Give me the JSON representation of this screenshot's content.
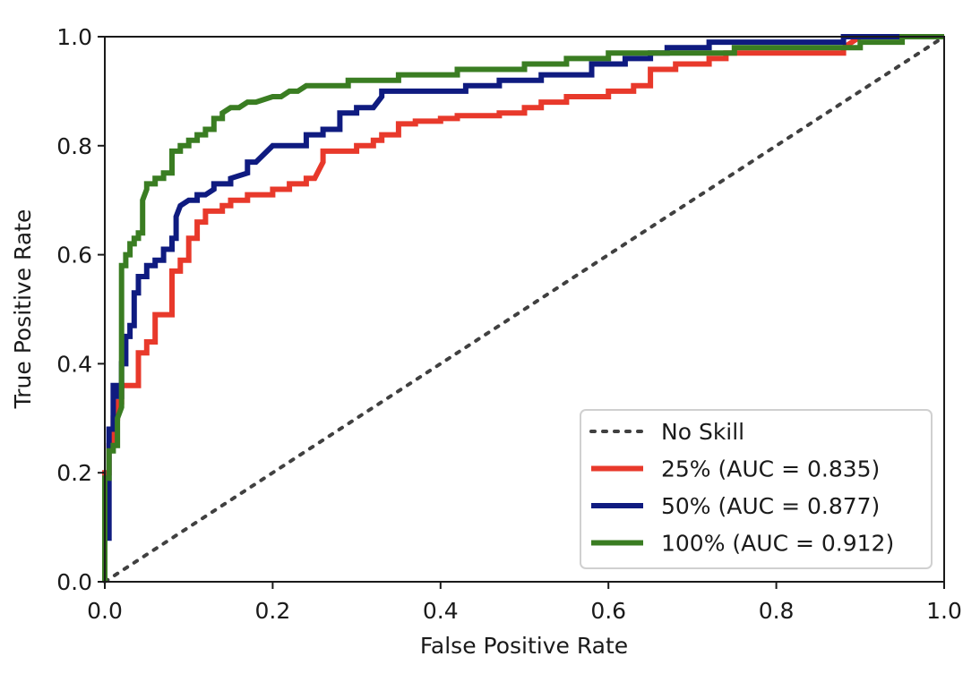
{
  "chart_data": {
    "type": "line",
    "title": "",
    "xlabel": "False Positive Rate",
    "ylabel": "True Positive Rate",
    "xlim": [
      0.0,
      1.0
    ],
    "ylim": [
      0.0,
      1.0
    ],
    "xticks": [
      "0.0",
      "0.2",
      "0.4",
      "0.6",
      "0.8",
      "1.0"
    ],
    "yticks": [
      "0.0",
      "0.2",
      "0.4",
      "0.6",
      "0.8",
      "1.0"
    ],
    "grid": false,
    "legend_position": "lower-right",
    "series": [
      {
        "name": "No Skill",
        "color": "#404040",
        "style": "dotted",
        "x": [
          0.0,
          1.0
        ],
        "y": [
          0.0,
          1.0
        ]
      },
      {
        "name": "25% (AUC = 0.835)",
        "color": "#e8392b",
        "style": "solid",
        "x": [
          0.0,
          0.0,
          0.005,
          0.005,
          0.01,
          0.01,
          0.015,
          0.015,
          0.02,
          0.02,
          0.025,
          0.04,
          0.04,
          0.05,
          0.05,
          0.06,
          0.06,
          0.07,
          0.07,
          0.08,
          0.08,
          0.09,
          0.09,
          0.1,
          0.1,
          0.11,
          0.11,
          0.12,
          0.12,
          0.13,
          0.14,
          0.14,
          0.15,
          0.15,
          0.17,
          0.17,
          0.19,
          0.2,
          0.2,
          0.22,
          0.22,
          0.24,
          0.24,
          0.25,
          0.26,
          0.26,
          0.28,
          0.3,
          0.3,
          0.32,
          0.32,
          0.33,
          0.33,
          0.35,
          0.35,
          0.37,
          0.37,
          0.4,
          0.4,
          0.42,
          0.42,
          0.47,
          0.47,
          0.5,
          0.5,
          0.52,
          0.52,
          0.55,
          0.55,
          0.6,
          0.6,
          0.63,
          0.63,
          0.65,
          0.65,
          0.68,
          0.68,
          0.72,
          0.72,
          0.74,
          0.74,
          0.88,
          0.88,
          0.9,
          1.0
        ],
        "y": [
          0.0,
          0.2,
          0.2,
          0.25,
          0.25,
          0.3,
          0.3,
          0.33,
          0.33,
          0.36,
          0.36,
          0.36,
          0.42,
          0.42,
          0.44,
          0.44,
          0.49,
          0.49,
          0.49,
          0.49,
          0.57,
          0.57,
          0.59,
          0.59,
          0.63,
          0.63,
          0.66,
          0.66,
          0.68,
          0.68,
          0.68,
          0.69,
          0.69,
          0.7,
          0.7,
          0.71,
          0.71,
          0.71,
          0.72,
          0.72,
          0.73,
          0.73,
          0.74,
          0.74,
          0.77,
          0.79,
          0.79,
          0.79,
          0.8,
          0.8,
          0.81,
          0.81,
          0.82,
          0.82,
          0.84,
          0.84,
          0.845,
          0.845,
          0.85,
          0.85,
          0.855,
          0.855,
          0.86,
          0.86,
          0.87,
          0.87,
          0.88,
          0.88,
          0.89,
          0.89,
          0.9,
          0.9,
          0.91,
          0.91,
          0.94,
          0.94,
          0.95,
          0.95,
          0.96,
          0.96,
          0.97,
          0.97,
          0.98,
          1.0,
          1.0
        ]
      },
      {
        "name": "50% (AUC = 0.877)",
        "color": "#0f1b80",
        "style": "solid",
        "x": [
          0.0,
          0.0,
          0.005,
          0.005,
          0.01,
          0.01,
          0.015,
          0.015,
          0.02,
          0.02,
          0.025,
          0.025,
          0.03,
          0.03,
          0.035,
          0.035,
          0.04,
          0.04,
          0.05,
          0.05,
          0.06,
          0.06,
          0.07,
          0.07,
          0.08,
          0.08,
          0.085,
          0.085,
          0.09,
          0.1,
          0.11,
          0.11,
          0.12,
          0.13,
          0.13,
          0.15,
          0.15,
          0.17,
          0.17,
          0.18,
          0.2,
          0.22,
          0.23,
          0.24,
          0.24,
          0.26,
          0.26,
          0.28,
          0.28,
          0.3,
          0.3,
          0.32,
          0.33,
          0.33,
          0.36,
          0.36,
          0.4,
          0.4,
          0.43,
          0.43,
          0.47,
          0.47,
          0.52,
          0.52,
          0.55,
          0.55,
          0.58,
          0.58,
          0.6,
          0.62,
          0.62,
          0.65,
          0.65,
          0.67,
          0.67,
          0.7,
          0.72,
          0.72,
          0.78,
          0.78,
          0.88,
          0.88,
          0.92,
          0.92,
          1.0
        ],
        "y": [
          0.0,
          0.08,
          0.08,
          0.28,
          0.28,
          0.36,
          0.36,
          0.34,
          0.34,
          0.4,
          0.4,
          0.45,
          0.45,
          0.47,
          0.47,
          0.53,
          0.53,
          0.56,
          0.56,
          0.58,
          0.58,
          0.59,
          0.59,
          0.61,
          0.61,
          0.63,
          0.63,
          0.67,
          0.69,
          0.7,
          0.7,
          0.71,
          0.71,
          0.72,
          0.73,
          0.73,
          0.74,
          0.75,
          0.77,
          0.77,
          0.8,
          0.8,
          0.8,
          0.8,
          0.82,
          0.82,
          0.83,
          0.83,
          0.86,
          0.86,
          0.87,
          0.87,
          0.89,
          0.9,
          0.9,
          0.9,
          0.9,
          0.9,
          0.9,
          0.91,
          0.91,
          0.92,
          0.92,
          0.93,
          0.93,
          0.93,
          0.93,
          0.95,
          0.95,
          0.95,
          0.96,
          0.96,
          0.97,
          0.97,
          0.98,
          0.98,
          0.98,
          0.99,
          0.99,
          0.99,
          0.99,
          1.0,
          1.0,
          1.0,
          1.0
        ]
      },
      {
        "name": "100% (AUC = 0.912)",
        "color": "#3a7d22",
        "style": "solid",
        "x": [
          0.0,
          0.0,
          0.005,
          0.005,
          0.01,
          0.01,
          0.015,
          0.015,
          0.02,
          0.02,
          0.025,
          0.025,
          0.03,
          0.03,
          0.035,
          0.035,
          0.04,
          0.04,
          0.045,
          0.045,
          0.05,
          0.05,
          0.06,
          0.06,
          0.07,
          0.07,
          0.08,
          0.08,
          0.09,
          0.09,
          0.1,
          0.1,
          0.11,
          0.11,
          0.12,
          0.12,
          0.13,
          0.13,
          0.14,
          0.14,
          0.15,
          0.16,
          0.17,
          0.17,
          0.18,
          0.2,
          0.21,
          0.22,
          0.23,
          0.24,
          0.25,
          0.27,
          0.29,
          0.29,
          0.32,
          0.32,
          0.35,
          0.35,
          0.38,
          0.38,
          0.42,
          0.42,
          0.5,
          0.5,
          0.55,
          0.55,
          0.6,
          0.6,
          0.65,
          0.7,
          0.75,
          0.75,
          0.8,
          0.8,
          0.85,
          0.9,
          0.9,
          0.95,
          0.95,
          1.0
        ],
        "y": [
          0.0,
          0.19,
          0.19,
          0.24,
          0.24,
          0.25,
          0.25,
          0.3,
          0.32,
          0.58,
          0.58,
          0.6,
          0.6,
          0.62,
          0.62,
          0.63,
          0.63,
          0.64,
          0.64,
          0.7,
          0.72,
          0.73,
          0.73,
          0.74,
          0.74,
          0.75,
          0.75,
          0.79,
          0.79,
          0.8,
          0.8,
          0.81,
          0.81,
          0.82,
          0.82,
          0.83,
          0.83,
          0.85,
          0.85,
          0.86,
          0.87,
          0.87,
          0.88,
          0.88,
          0.88,
          0.89,
          0.89,
          0.9,
          0.9,
          0.91,
          0.91,
          0.91,
          0.91,
          0.92,
          0.92,
          0.92,
          0.92,
          0.93,
          0.93,
          0.93,
          0.93,
          0.94,
          0.94,
          0.95,
          0.95,
          0.96,
          0.96,
          0.97,
          0.97,
          0.97,
          0.97,
          0.98,
          0.98,
          0.98,
          0.98,
          0.98,
          0.99,
          0.99,
          1.0,
          1.0
        ]
      }
    ]
  }
}
